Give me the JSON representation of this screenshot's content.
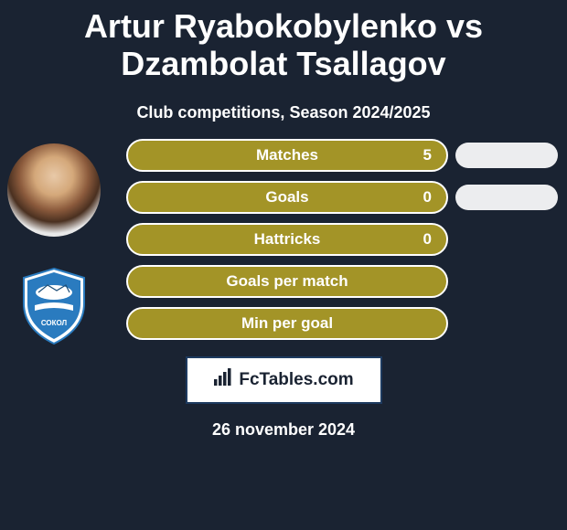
{
  "title": "Artur Ryabokobylenko vs Dzambolat Tsallagov",
  "title_fontsize": 36,
  "title_color": "#ffffff",
  "subtitle": "Club competitions, Season 2024/2025",
  "subtitle_fontsize": 18,
  "background_color": "#1a2332",
  "stats": [
    {
      "label": "Matches",
      "value": "5",
      "show_right_pill": true
    },
    {
      "label": "Goals",
      "value": "0",
      "show_right_pill": true
    },
    {
      "label": "Hattricks",
      "value": "0",
      "show_right_pill": false
    },
    {
      "label": "Goals per match",
      "value": "",
      "show_right_pill": false
    },
    {
      "label": "Min per goal",
      "value": "",
      "show_right_pill": false
    }
  ],
  "pill_left_bg": "#a39427",
  "pill_left_border": "#ffffff",
  "pill_left_border_width": 2,
  "pill_text_color": "#ffffff",
  "pill_label_fontsize": 17,
  "pill_value_fontsize": 17,
  "pill_right_bg": "#ecedef",
  "footer_logo_text": "FcTables.com",
  "footer_logo_fontsize": 19,
  "footer_logo_border": "#1d3a5f",
  "footer_logo_bg": "#ffffff",
  "date": "26 november 2024",
  "date_fontsize": 18,
  "date_color": "#ffffff",
  "badge_colors": {
    "outer": "#ffffff",
    "main": "#2a7bbf",
    "accent": "#1e4f78"
  }
}
